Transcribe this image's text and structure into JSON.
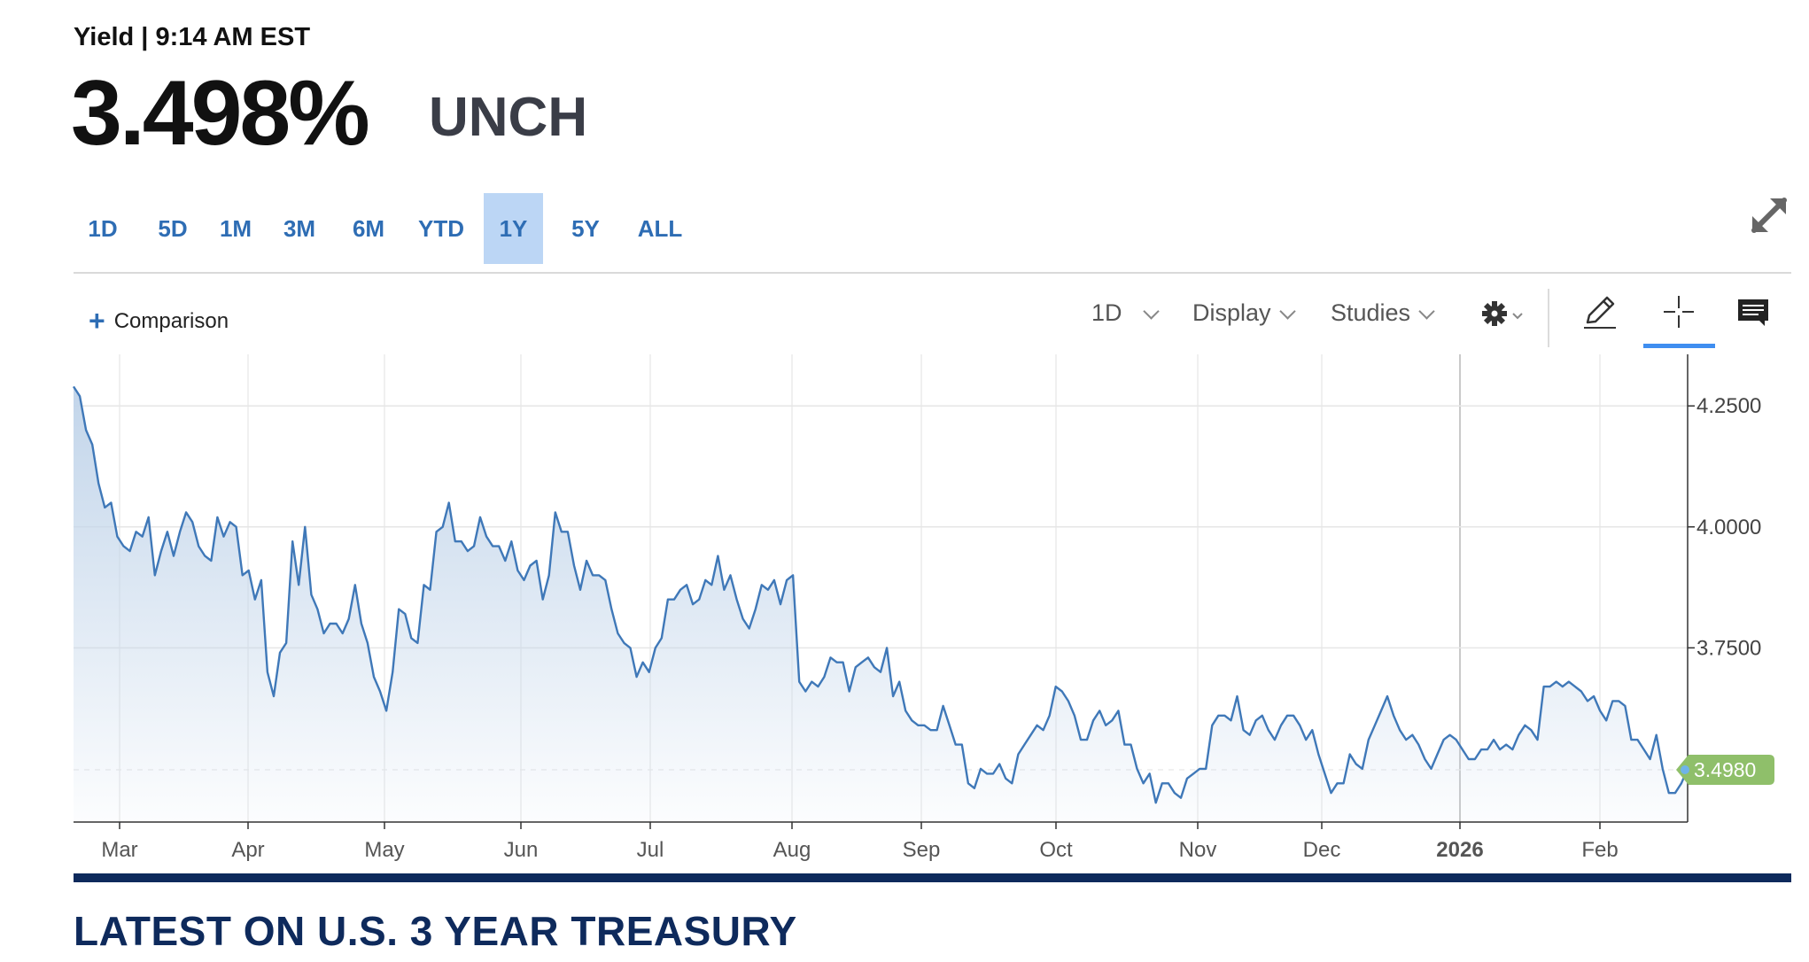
{
  "quote": {
    "meta_label": "Yield | 9:14 AM EST",
    "price": "3.498%",
    "change": "UNCH"
  },
  "range_tabs": [
    {
      "label": "1D",
      "active": false
    },
    {
      "label": "5D",
      "active": false
    },
    {
      "label": "1M",
      "active": false
    },
    {
      "label": "3M",
      "active": false
    },
    {
      "label": "6M",
      "active": false
    },
    {
      "label": "YTD",
      "active": false
    },
    {
      "label": "1Y",
      "active": true
    },
    {
      "label": "5Y",
      "active": false
    },
    {
      "label": "ALL",
      "active": false
    }
  ],
  "toolbar": {
    "comparison_label": "Comparison",
    "interval_label": "1D",
    "display_label": "Display",
    "studies_label": "Studies"
  },
  "icons": {
    "expand": "expand-icon",
    "settings": "gear-icon",
    "draw": "pencil-icon",
    "crosshair": "crosshair-icon",
    "comments": "comment-icon"
  },
  "colors": {
    "line": "#3f78b8",
    "area_top": "#c2d5ea",
    "last_value_badge": "#8fbf6a",
    "active_tab": "#bcd6f5",
    "tab_text": "#2e6db4",
    "section_title": "#0e2a5c"
  },
  "section_title": "LATEST ON U.S. 3 YEAR TREASURY",
  "chart_data": {
    "type": "area",
    "title": "",
    "xlabel": "",
    "ylabel": "",
    "x_ticks": [
      "Mar",
      "Apr",
      "May",
      "Jun",
      "Jul",
      "Aug",
      "Sep",
      "Oct",
      "Nov",
      "Dec",
      "2026",
      "Feb"
    ],
    "y_ticks": [
      "4.2500",
      "4.0000",
      "3.7500"
    ],
    "ylim": [
      3.39,
      4.32
    ],
    "grid": true,
    "last_value": 3.498,
    "last_value_label": "3.4980",
    "series": [
      {
        "values": [
          4.29,
          4.27,
          4.2,
          4.17,
          4.09,
          4.04,
          4.05,
          3.98,
          3.96,
          3.95,
          3.99,
          3.98,
          4.02,
          3.9,
          3.95,
          3.99,
          3.94,
          3.99,
          4.03,
          4.01,
          3.96,
          3.94,
          3.93,
          4.02,
          3.98,
          4.01,
          4.0,
          3.9,
          3.91,
          3.85,
          3.89,
          3.7,
          3.65,
          3.74,
          3.76,
          3.97,
          3.88,
          4.0,
          3.86,
          3.83,
          3.78,
          3.8,
          3.8,
          3.78,
          3.81,
          3.88,
          3.8,
          3.76,
          3.69,
          3.66,
          3.62,
          3.7,
          3.83,
          3.82,
          3.77,
          3.76,
          3.88,
          3.87,
          3.99,
          4.0,
          4.05,
          3.97,
          3.97,
          3.95,
          3.96,
          4.02,
          3.98,
          3.96,
          3.96,
          3.93,
          3.97,
          3.91,
          3.89,
          3.92,
          3.93,
          3.85,
          3.9,
          4.03,
          3.99,
          3.99,
          3.92,
          3.87,
          3.93,
          3.9,
          3.9,
          3.89,
          3.83,
          3.78,
          3.76,
          3.75,
          3.69,
          3.72,
          3.7,
          3.75,
          3.77,
          3.85,
          3.85,
          3.87,
          3.88,
          3.84,
          3.85,
          3.89,
          3.88,
          3.94,
          3.87,
          3.9,
          3.85,
          3.81,
          3.79,
          3.83,
          3.88,
          3.87,
          3.89,
          3.84,
          3.89,
          3.9,
          3.68,
          3.66,
          3.68,
          3.67,
          3.69,
          3.73,
          3.72,
          3.72,
          3.66,
          3.71,
          3.72,
          3.73,
          3.71,
          3.7,
          3.75,
          3.65,
          3.68,
          3.62,
          3.6,
          3.59,
          3.59,
          3.58,
          3.58,
          3.63,
          3.59,
          3.55,
          3.55,
          3.47,
          3.46,
          3.5,
          3.49,
          3.49,
          3.51,
          3.48,
          3.47,
          3.53,
          3.55,
          3.57,
          3.59,
          3.58,
          3.61,
          3.67,
          3.66,
          3.64,
          3.61,
          3.56,
          3.56,
          3.6,
          3.62,
          3.59,
          3.6,
          3.62,
          3.55,
          3.55,
          3.5,
          3.47,
          3.49,
          3.43,
          3.47,
          3.47,
          3.45,
          3.44,
          3.48,
          3.49,
          3.5,
          3.5,
          3.59,
          3.61,
          3.61,
          3.6,
          3.65,
          3.58,
          3.57,
          3.6,
          3.61,
          3.58,
          3.56,
          3.59,
          3.61,
          3.61,
          3.59,
          3.56,
          3.58,
          3.53,
          3.49,
          3.45,
          3.47,
          3.47,
          3.53,
          3.51,
          3.5,
          3.56,
          3.59,
          3.62,
          3.65,
          3.61,
          3.58,
          3.56,
          3.57,
          3.55,
          3.52,
          3.5,
          3.53,
          3.56,
          3.57,
          3.56,
          3.54,
          3.52,
          3.52,
          3.54,
          3.54,
          3.56,
          3.54,
          3.55,
          3.54,
          3.57,
          3.59,
          3.58,
          3.56,
          3.67,
          3.67,
          3.68,
          3.67,
          3.68,
          3.67,
          3.66,
          3.64,
          3.65,
          3.62,
          3.6,
          3.64,
          3.64,
          3.63,
          3.56,
          3.56,
          3.54,
          3.52,
          3.57,
          3.5,
          3.45,
          3.45,
          3.47,
          3.5
        ]
      }
    ]
  }
}
